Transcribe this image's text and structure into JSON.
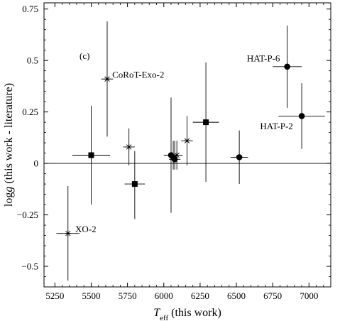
{
  "chart_data": {
    "type": "scatter",
    "panel_label": "(c)",
    "xlabel": {
      "main": "T",
      "sub": "eff",
      "rest": " (this work)"
    },
    "ylabel": {
      "pre": "log",
      "ital": "g",
      "rest": " (this work - literature)"
    },
    "xlim": [
      5175,
      7150
    ],
    "ylim": [
      -0.6,
      0.78
    ],
    "xticks": [
      5250,
      5500,
      5750,
      6000,
      6250,
      6500,
      6750,
      7000
    ],
    "xtick_labels": [
      "5250",
      "5500",
      "5750",
      "6000",
      "6250",
      "6500",
      "6750",
      "7000"
    ],
    "yticks": [
      -0.5,
      -0.25,
      0,
      0.25,
      0.5,
      0.75
    ],
    "ytick_labels": [
      "−0.5",
      "−0.25",
      "0",
      "0.25",
      "0.5",
      "0.75"
    ],
    "zero_line": 0,
    "points": [
      {
        "marker": "star",
        "x": 5340,
        "y": -0.34,
        "xerr": 80,
        "yerr": [
          0.23,
          0.23
        ]
      },
      {
        "marker": "square",
        "x": 5500,
        "y": 0.04,
        "xerr": 130,
        "yerr": [
          0.24,
          0.24
        ]
      },
      {
        "marker": "star",
        "x": 5610,
        "y": 0.41,
        "xerr": 40,
        "yerr": [
          0.28,
          0.28
        ]
      },
      {
        "marker": "star",
        "x": 5760,
        "y": 0.08,
        "xerr": 40,
        "yerr": [
          0.09,
          0.09
        ]
      },
      {
        "marker": "square",
        "x": 5800,
        "y": -0.1,
        "xerr": 70,
        "yerr": [
          0.17,
          0.16
        ]
      },
      {
        "marker": "circle",
        "x": 6050,
        "y": 0.04,
        "xerr": 50,
        "yerr": [
          0.28,
          0.28
        ]
      },
      {
        "marker": "circle",
        "x": 6065,
        "y": 0.03,
        "xerr": 30,
        "yerr": [
          0.06,
          0.08
        ]
      },
      {
        "marker": "circle",
        "x": 6075,
        "y": 0.02,
        "xerr": 40,
        "yerr": [
          0.05,
          0.09
        ]
      },
      {
        "marker": "star",
        "x": 6090,
        "y": 0.04,
        "xerr": 40,
        "yerr": [
          0.07,
          0.07
        ]
      },
      {
        "marker": "star",
        "x": 6160,
        "y": 0.11,
        "xerr": 40,
        "yerr": [
          0.12,
          0.12
        ]
      },
      {
        "marker": "square",
        "x": 6290,
        "y": 0.2,
        "xerr": 90,
        "yerr": [
          0.29,
          0.29
        ]
      },
      {
        "marker": "circle",
        "x": 6520,
        "y": 0.03,
        "xerr": 60,
        "yerr": [
          0.13,
          0.13
        ]
      },
      {
        "marker": "circle",
        "x": 6850,
        "y": 0.47,
        "xerr": 100,
        "yerr": [
          0.2,
          0.2
        ]
      },
      {
        "marker": "circle",
        "x": 6950,
        "y": 0.23,
        "xerr": 160,
        "yerr": [
          0.16,
          0.16
        ]
      }
    ],
    "annotations": [
      {
        "text": "CoRoT-Exo-2",
        "x": 5645,
        "y": 0.43,
        "anchor": "start"
      },
      {
        "text": "HAT-P-6",
        "x": 6800,
        "y": 0.51,
        "anchor": "end"
      },
      {
        "text": "HAT-P-2",
        "x": 6890,
        "y": 0.18,
        "anchor": "end"
      },
      {
        "text": "XO-2",
        "x": 5390,
        "y": -0.32,
        "anchor": "start"
      }
    ]
  }
}
